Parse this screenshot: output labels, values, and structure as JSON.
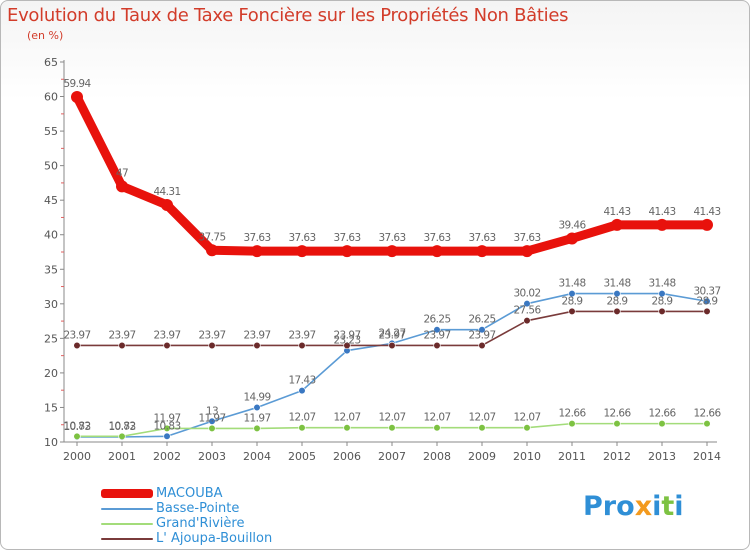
{
  "title": "Evolution du Taux de Taxe Foncière sur les Propriétés Non Bâties",
  "unit_label": "(en %)",
  "logo": {
    "text": "Proxiti",
    "colors": [
      "#2f8fd6",
      "#f39a1e",
      "#7dc242"
    ]
  },
  "chart_data": {
    "type": "line",
    "title": "Evolution du Taux de Taxe Foncière sur les Propriétés Non Bâties",
    "ylabel": "(en %)",
    "xlabel": "",
    "ylim": [
      10,
      65
    ],
    "yticks": [
      10,
      15,
      20,
      25,
      30,
      35,
      40,
      45,
      50,
      55,
      60,
      65
    ],
    "grid": false,
    "legend_position": "bottom-left",
    "x": [
      "2000",
      "2001",
      "2002",
      "2003",
      "2004",
      "2005",
      "2006",
      "2007",
      "2008",
      "2009",
      "2010",
      "2011",
      "2012",
      "2013",
      "2014"
    ],
    "series": [
      {
        "name": "MACOUBA",
        "color": "#e8120c",
        "style": "thick",
        "values": [
          59.94,
          47,
          44.31,
          37.75,
          37.63,
          37.63,
          37.63,
          37.63,
          37.63,
          37.63,
          37.63,
          39.46,
          41.43,
          41.43,
          41.43
        ],
        "labels": [
          "59.94",
          "47",
          "44.31",
          "37.75",
          "37.63",
          "37.63",
          "37.63",
          "37.63",
          "37.63",
          "37.63",
          "37.63",
          "39.46",
          "41.43",
          "41.43",
          "41.43"
        ]
      },
      {
        "name": "Basse-Pointe",
        "color": "#5b9bd5",
        "point_color": "#3a78c2",
        "style": "thin",
        "values": [
          10.73,
          10.73,
          10.83,
          13,
          14.99,
          17.43,
          23.23,
          24.27,
          26.25,
          26.25,
          30.02,
          31.48,
          31.48,
          31.48,
          30.37
        ],
        "labels": [
          "10.73",
          "10.73",
          "10.83",
          "13",
          "14.99",
          "17.43",
          "23.23",
          "24.27",
          "26.25",
          "26.25",
          "30.02",
          "31.48",
          "31.48",
          "31.48",
          "30.37"
        ]
      },
      {
        "name": "Grand'Rivière",
        "color": "#a3dc7a",
        "point_color": "#7dc242",
        "style": "thin",
        "values": [
          10.82,
          10.82,
          11.97,
          11.97,
          11.97,
          12.07,
          12.07,
          12.07,
          12.07,
          12.07,
          12.07,
          12.66,
          12.66,
          12.66,
          12.66
        ],
        "labels": [
          "10.82",
          "10.82",
          "11.97",
          "11.97",
          "11.97",
          "12.07",
          "12.07",
          "12.07",
          "12.07",
          "12.07",
          "12.07",
          "12.66",
          "12.66",
          "12.66",
          "12.66"
        ]
      },
      {
        "name": "L' Ajoupa-Bouillon",
        "color": "#7a3b3b",
        "point_color": "#6b2a2a",
        "style": "thin",
        "values": [
          23.97,
          23.97,
          23.97,
          23.97,
          23.97,
          23.97,
          23.97,
          23.97,
          23.97,
          23.97,
          27.56,
          28.9,
          28.9,
          28.9,
          28.9
        ],
        "labels": [
          "23.97",
          "23.97",
          "23.97",
          "23.97",
          "23.97",
          "23.97",
          "23.97",
          "23.97",
          "23.97",
          "23.97",
          "27.56",
          "28.9",
          "28.9",
          "28.9",
          "28.9"
        ]
      }
    ]
  }
}
